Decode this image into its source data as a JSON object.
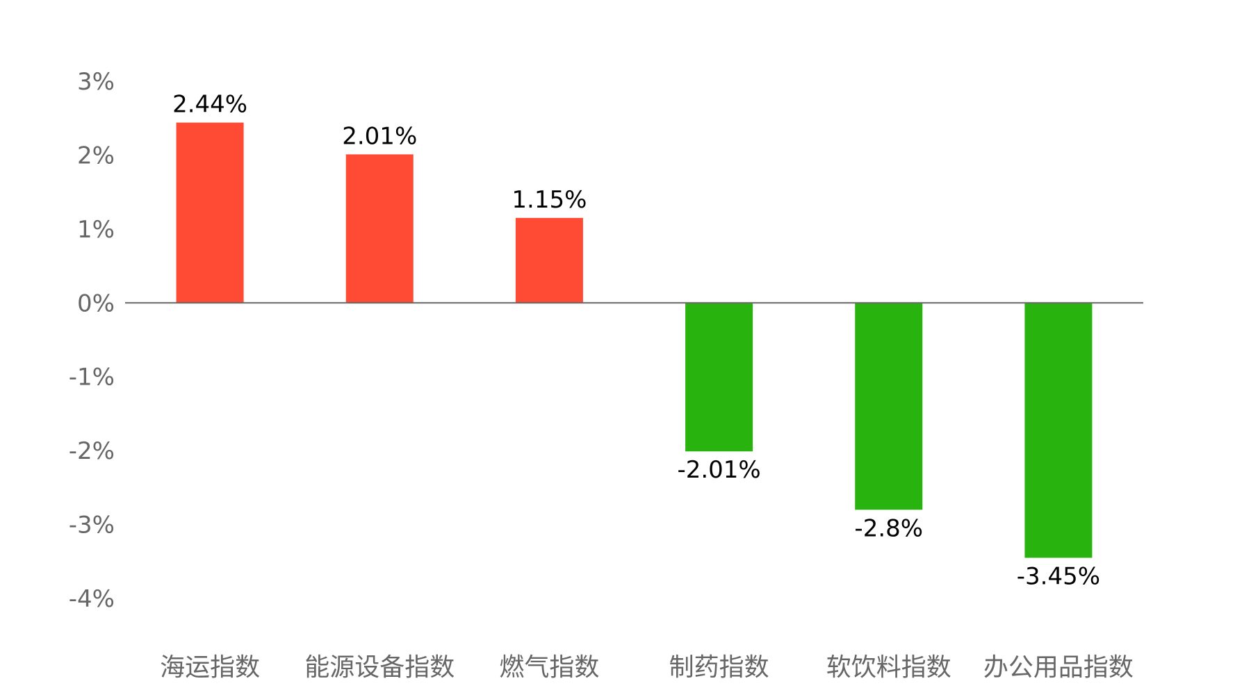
{
  "chart_data": {
    "type": "bar",
    "title": "",
    "xlabel": "",
    "ylabel": "",
    "categories": [
      "海运指数",
      "能源设备指数",
      "燃气指数",
      "制药指数",
      "软饮料指数",
      "办公用品指数"
    ],
    "values": [
      2.44,
      2.01,
      1.15,
      -2.01,
      -2.8,
      -3.45
    ],
    "value_labels": [
      "2.44%",
      "2.01%",
      "1.15%",
      "-2.01%",
      "-2.8%",
      "-3.45%"
    ],
    "yticks": [
      3,
      2,
      1,
      0,
      -1,
      -2,
      -3,
      -4
    ],
    "ytick_labels": [
      "3%",
      "2%",
      "1%",
      "0%",
      "-1%",
      "-2%",
      "-3%",
      "-4%"
    ],
    "ylim": [
      -4,
      3
    ],
    "grid": false,
    "legend": "none",
    "colors": {
      "positive": "#FF4B33",
      "negative": "#28B30F",
      "axis_line": "#666666",
      "tick_label": "#666666",
      "category_label": "#666666",
      "value_label": "#000000"
    }
  }
}
